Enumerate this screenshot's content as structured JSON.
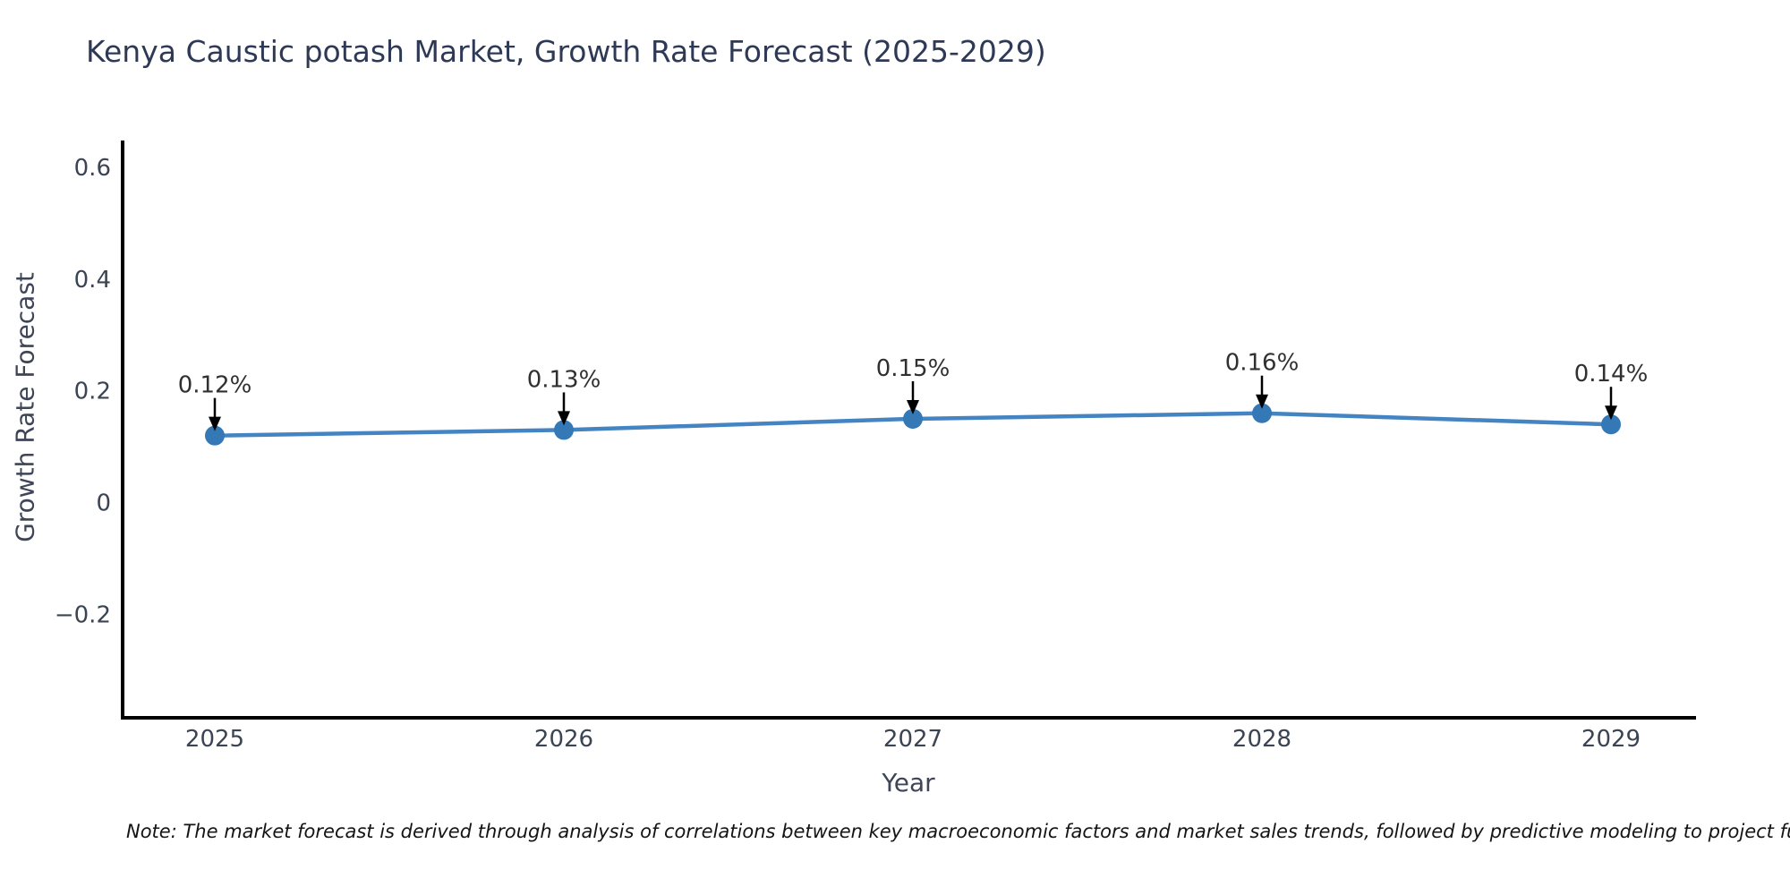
{
  "chart_data": {
    "type": "line",
    "title": "Kenya Caustic potash Market, Growth Rate Forecast (2025-2029)",
    "xlabel": "Year",
    "ylabel": "Growth Rate Forecast",
    "categories": [
      "2025",
      "2026",
      "2027",
      "2028",
      "2029"
    ],
    "values": [
      0.12,
      0.13,
      0.15,
      0.16,
      0.14
    ],
    "point_labels": [
      "0.12%",
      "0.13%",
      "0.15%",
      "0.16%",
      "0.14%"
    ],
    "yticks": [
      0.6,
      0.4,
      0.2,
      0,
      -0.2
    ],
    "ytick_labels": [
      "0.6",
      "0.4",
      "0.2",
      "0",
      "−0.2"
    ],
    "ylim": [
      -0.385,
      0.648
    ],
    "grid": false,
    "legend": null,
    "note": "Note: The market forecast is derived through analysis of correlations between key macroeconomic factors and market sales trends, followed by predictive modeling to project future sales.",
    "colors": {
      "line": "#4484c2",
      "marker": "#3478b5",
      "axis": "#000000",
      "tick_label": "#3b4453",
      "axis_label": "#3d4557",
      "title": "#2e3a55",
      "annotation_text": "#303030",
      "annotation_arrow": "#000000",
      "background": "#ffffff"
    }
  }
}
